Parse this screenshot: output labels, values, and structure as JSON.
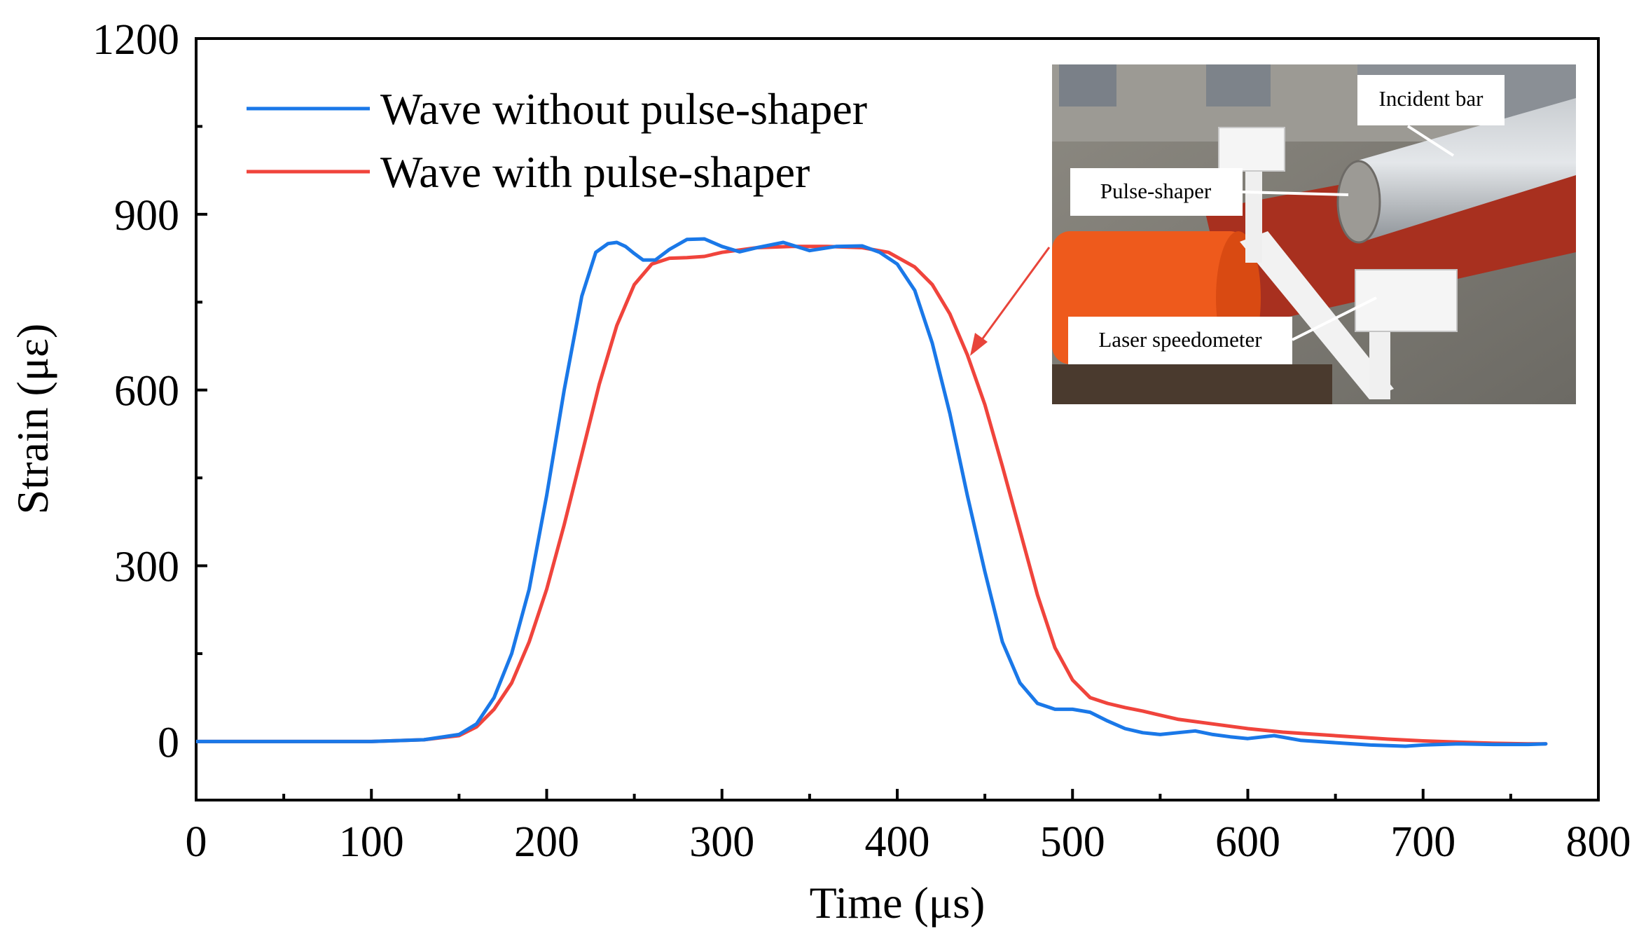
{
  "chart_data": {
    "type": "line",
    "title": "",
    "xlabel": "Time (μs)",
    "ylabel": "Strain (με)",
    "xlim": [
      0,
      800
    ],
    "ylim": [
      -100,
      1200
    ],
    "x_ticks": [
      0,
      100,
      200,
      300,
      400,
      500,
      600,
      700,
      800
    ],
    "y_ticks": [
      0,
      300,
      600,
      900,
      1200
    ],
    "grid": false,
    "legend_position": "top-left",
    "series": [
      {
        "name": "Wave without pulse-shaper",
        "color": "#1a78e8",
        "x": [
          0,
          50,
          100,
          130,
          150,
          160,
          170,
          180,
          190,
          200,
          210,
          220,
          228,
          235,
          240,
          245,
          250,
          255,
          262,
          270,
          280,
          290,
          300,
          310,
          320,
          335,
          350,
          365,
          380,
          390,
          400,
          410,
          420,
          430,
          440,
          450,
          460,
          470,
          480,
          490,
          500,
          510,
          520,
          530,
          540,
          550,
          560,
          570,
          580,
          590,
          600,
          615,
          630,
          650,
          670,
          690,
          700,
          720,
          740,
          760,
          770
        ],
        "y": [
          0,
          0,
          0,
          3,
          12,
          30,
          75,
          150,
          260,
          420,
          600,
          760,
          835,
          850,
          852,
          845,
          833,
          822,
          822,
          840,
          857,
          858,
          845,
          836,
          843,
          852,
          838,
          845,
          846,
          835,
          815,
          770,
          680,
          560,
          420,
          290,
          170,
          100,
          65,
          55,
          55,
          50,
          35,
          22,
          15,
          12,
          15,
          18,
          12,
          8,
          5,
          10,
          2,
          -2,
          -6,
          -8,
          -6,
          -4,
          -5,
          -5,
          -4
        ]
      },
      {
        "name": "Wave with pulse-shaper",
        "color": "#f0443c",
        "x": [
          0,
          50,
          100,
          130,
          150,
          160,
          170,
          180,
          190,
          200,
          210,
          220,
          230,
          240,
          250,
          260,
          270,
          280,
          290,
          300,
          320,
          340,
          360,
          380,
          395,
          410,
          420,
          430,
          440,
          450,
          460,
          470,
          480,
          490,
          500,
          510,
          520,
          530,
          540,
          550,
          560,
          580,
          600,
          620,
          640,
          660,
          680,
          700,
          720,
          740,
          760,
          770
        ],
        "y": [
          0,
          0,
          0,
          3,
          10,
          25,
          55,
          100,
          170,
          260,
          370,
          490,
          610,
          710,
          780,
          815,
          825,
          826,
          828,
          835,
          843,
          845,
          845,
          843,
          835,
          810,
          780,
          730,
          660,
          575,
          470,
          360,
          250,
          160,
          105,
          75,
          65,
          58,
          52,
          45,
          38,
          30,
          22,
          16,
          12,
          8,
          4,
          1,
          -1,
          -3,
          -4,
          -4
        ]
      }
    ]
  },
  "inset_photo": {
    "labels": {
      "incident_bar": "Incident bar",
      "pulse_shaper": "Pulse-shaper",
      "laser_speedometer": "Laser speedometer"
    }
  }
}
